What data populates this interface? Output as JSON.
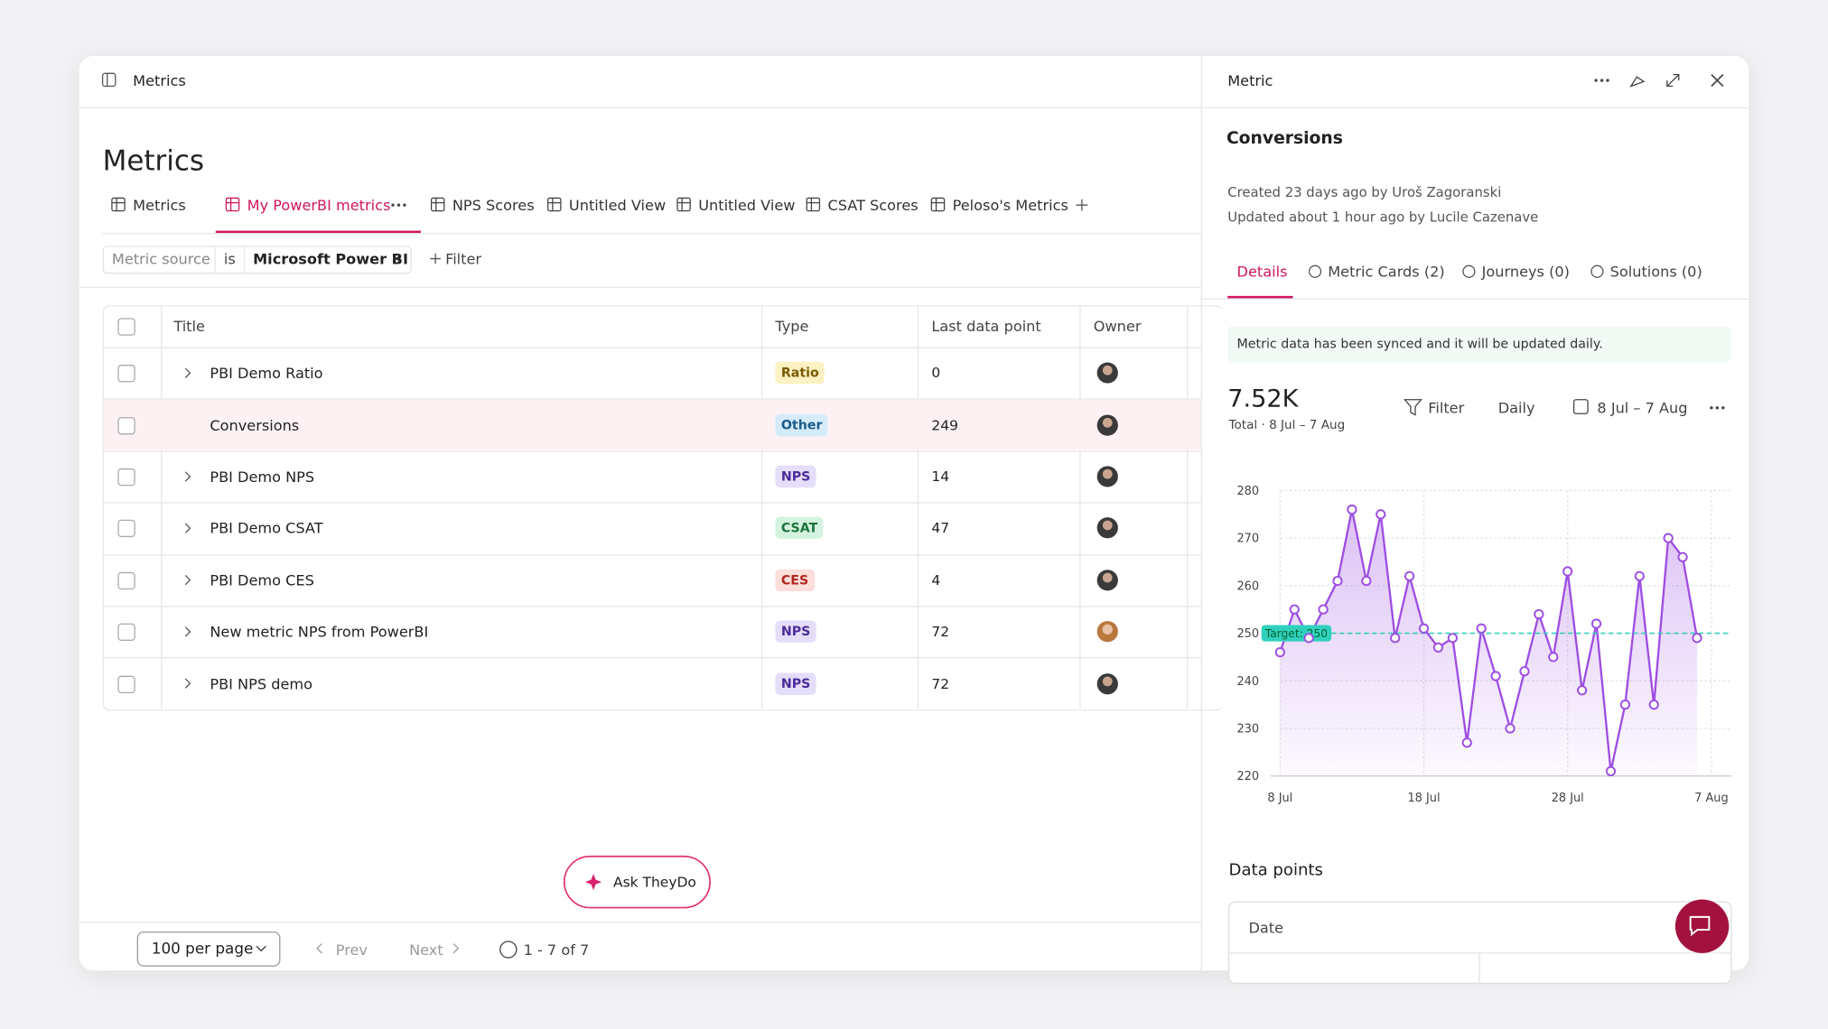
{
  "header": {
    "title": "Metrics"
  },
  "page_title": "Metrics",
  "tabs": [
    "Metrics",
    "My PowerBI metrics",
    "NPS Scores",
    "Untitled View",
    "Untitled View",
    "CSAT Scores",
    "Peloso's Metrics"
  ],
  "filter": {
    "field": "Metric source",
    "operator": "is",
    "value": "Microsoft Power BI",
    "add": "Filter"
  },
  "table": {
    "columns": [
      "Title",
      "Type",
      "Last data point",
      "Owner"
    ],
    "rows": [
      {
        "title": "PBI Demo Ratio",
        "type": "Ratio",
        "last": 0,
        "bg": "#fcf1c2",
        "fg": "#7a5a00"
      },
      {
        "title": "Conversions",
        "type": "Other",
        "last": 249,
        "bg": "#d5ebfa",
        "fg": "#1b5b88"
      },
      {
        "title": "PBI Demo NPS",
        "type": "NPS",
        "last": 14,
        "bg": "#e5defa",
        "fg": "#4a2c98"
      },
      {
        "title": "PBI Demo CSAT",
        "type": "CSAT",
        "last": 47,
        "bg": "#d4f3de",
        "fg": "#1c743c"
      },
      {
        "title": "PBI Demo CES",
        "type": "CES",
        "last": 4,
        "bg": "#fcdedb",
        "fg": "#b0261e"
      },
      {
        "title": "New metric NPS from PowerBI",
        "type": "NPS",
        "last": 72,
        "bg": "#e5defa",
        "fg": "#4a2c98"
      },
      {
        "title": "PBI NPS demo",
        "type": "NPS",
        "last": 72,
        "bg": "#e5defa",
        "fg": "#4a2c98"
      }
    ]
  },
  "ask_button": "Ask TheyDo",
  "pagination": {
    "per_page": "100 per page",
    "prev": "Prev",
    "next": "Next",
    "range": "1 - 7 of 7"
  },
  "panel": {
    "title": "Metric",
    "metric": "Conversions",
    "created": "Created 23 days ago by Uroš Zagoranski",
    "updated": "Updated about 1 hour ago by Lucile Cazenave",
    "tabs": [
      "Details",
      "Metric Cards (2)",
      "Journeys (0)",
      "Solutions (0)"
    ],
    "info": "Metric data has been synced and it will be updated daily.",
    "total": "7.52K",
    "total_caption": "Total · 8 Jul – 7 Aug",
    "filter": "Filter",
    "interval": "Daily",
    "range": "8 Jul – 7 Aug",
    "data_points": "Data points",
    "data_column": "Date"
  },
  "chart_data": {
    "type": "line",
    "categories": [
      "8 Jul",
      null,
      null,
      null,
      null,
      null,
      null,
      null,
      null,
      null,
      "18 Jul",
      null,
      null,
      null,
      null,
      null,
      null,
      null,
      null,
      null,
      "28 Jul",
      null,
      null,
      null,
      null,
      null,
      null,
      null,
      null,
      null,
      "7 Aug"
    ],
    "values": [
      246,
      255,
      249,
      255,
      261,
      276,
      261,
      275,
      249,
      262,
      251,
      247,
      249,
      227,
      251,
      241,
      230,
      242,
      254,
      245,
      263,
      238,
      252,
      221,
      235,
      262,
      235,
      270,
      266,
      249,
      null
    ],
    "color": "#9d4ee3",
    "ylim": [
      220,
      280
    ],
    "yticks": [
      220,
      230,
      240,
      250,
      260,
      270,
      280
    ],
    "grid": true,
    "target": 250,
    "target_label": "Target: 250",
    "target_color": "#2fd1bd"
  }
}
